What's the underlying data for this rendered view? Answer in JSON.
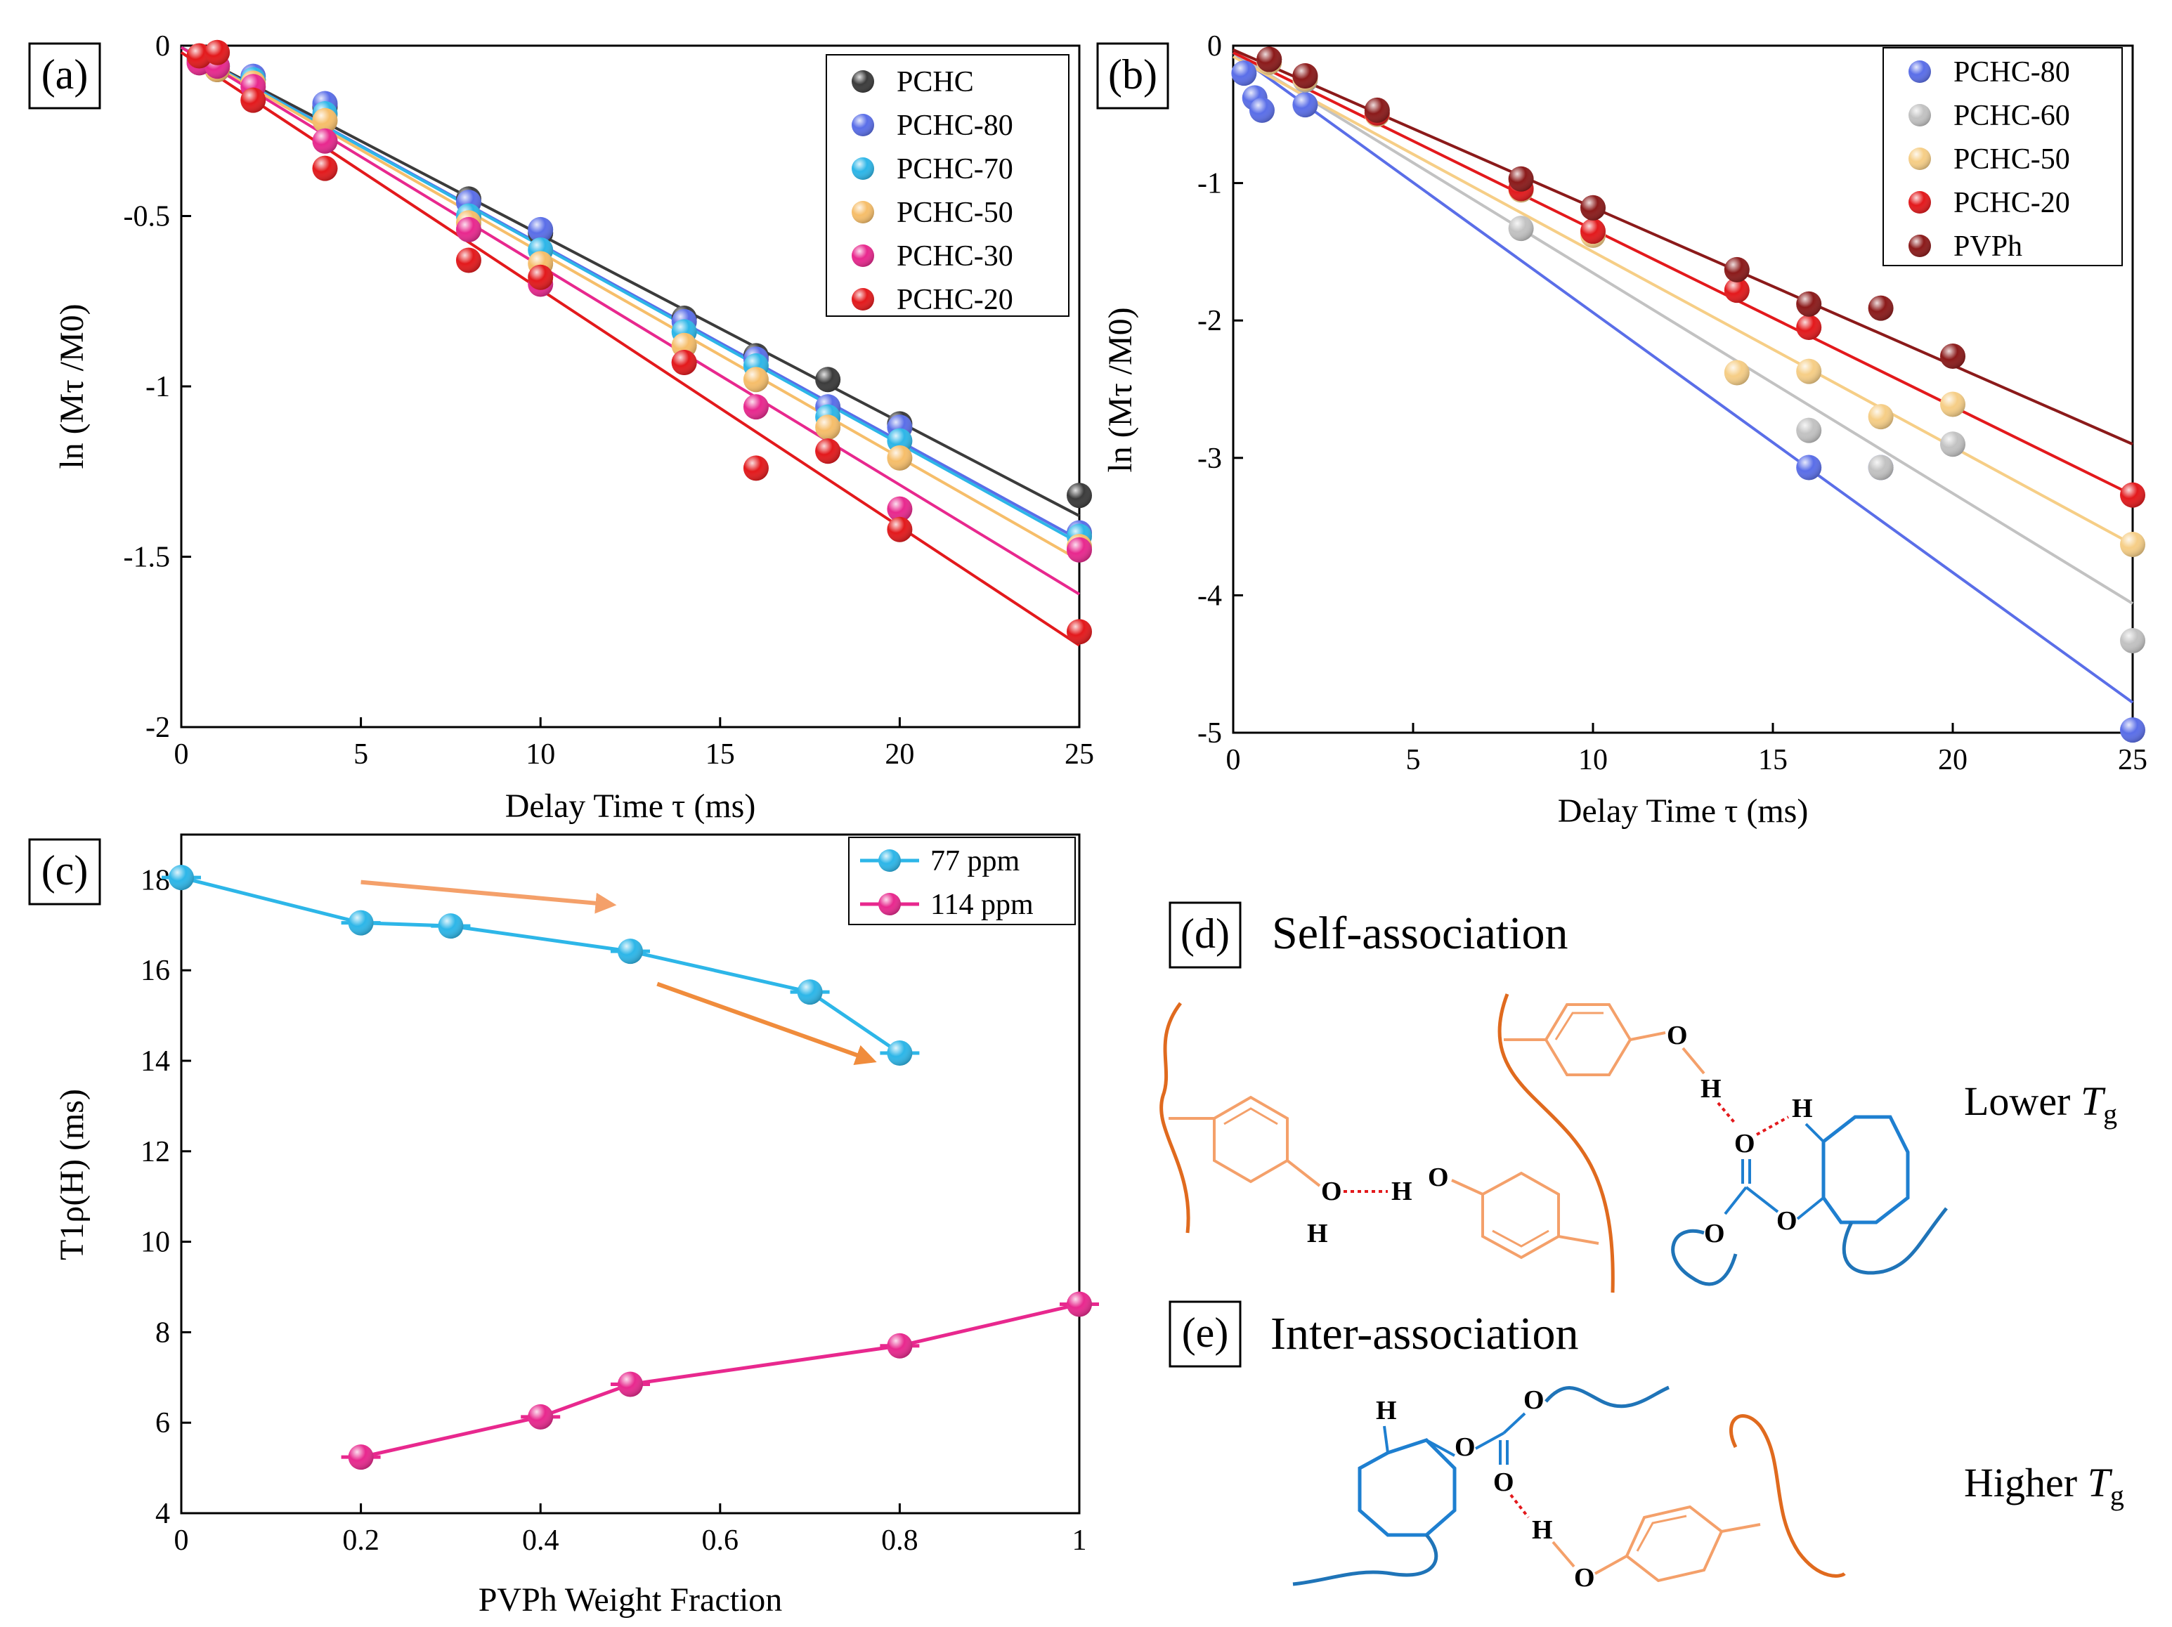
{
  "panels": {
    "a": "(a)",
    "b": "(b)",
    "c": "(c)",
    "d": "(d)",
    "e": "(e)"
  },
  "chart_data": [
    {
      "id": "a",
      "type": "scatter",
      "title": "",
      "xlabel": "Delay Time τ (ms)",
      "ylabel": "ln (Mτ /M0)",
      "xlim": [
        0,
        25
      ],
      "ylim": [
        -2,
        0
      ],
      "xticks": [
        0,
        5,
        10,
        15,
        20,
        25
      ],
      "yticks": [
        0,
        -0.5,
        -1,
        -1.5,
        -2
      ],
      "ytick_labels": [
        "0",
        "-0.5",
        "-1",
        "-1.5",
        "-2"
      ],
      "legend_position": "top-right",
      "series": [
        {
          "name": "PCHC",
          "color": "#3b3b3b",
          "x": [
            0.5,
            1,
            2,
            4,
            8,
            10,
            14,
            16,
            18,
            20,
            25
          ],
          "y": [
            -0.04,
            -0.07,
            -0.1,
            -0.18,
            -0.45,
            -0.55,
            -0.8,
            -0.91,
            -0.98,
            -1.11,
            -1.32
          ],
          "fit": [
            0,
            -0.005,
            25,
            -1.38
          ]
        },
        {
          "name": "PCHC-80",
          "color": "#5a6ee8",
          "x": [
            0.5,
            1,
            2,
            4,
            8,
            10,
            14,
            16,
            18,
            20,
            25
          ],
          "y": [
            -0.05,
            -0.06,
            -0.09,
            -0.17,
            -0.46,
            -0.54,
            -0.81,
            -0.92,
            -1.06,
            -1.12,
            -1.43
          ],
          "fit": [
            0,
            -0.005,
            25,
            -1.45
          ]
        },
        {
          "name": "PCHC-70",
          "color": "#2db6e8",
          "x": [
            0.5,
            1,
            2,
            4,
            8,
            10,
            14,
            16,
            18,
            20,
            25
          ],
          "y": [
            -0.04,
            -0.06,
            -0.1,
            -0.2,
            -0.5,
            -0.6,
            -0.84,
            -0.94,
            -1.09,
            -1.16,
            -1.44
          ],
          "fit": [
            0,
            -0.005,
            25,
            -1.46
          ]
        },
        {
          "name": "PCHC-50",
          "color": "#f6be6a",
          "x": [
            0.5,
            1,
            2,
            4,
            8,
            10,
            14,
            16,
            18,
            20,
            25
          ],
          "y": [
            -0.05,
            -0.07,
            -0.11,
            -0.22,
            -0.52,
            -0.64,
            -0.88,
            -0.98,
            -1.12,
            -1.21,
            -1.47
          ],
          "fit": [
            0,
            -0.005,
            25,
            -1.51
          ]
        },
        {
          "name": "PCHC-30",
          "color": "#e8288e",
          "x": [
            0.5,
            1,
            2,
            4,
            8,
            10,
            14,
            16,
            18,
            20,
            25
          ],
          "y": [
            -0.05,
            -0.06,
            -0.12,
            -0.28,
            -0.54,
            -0.7,
            -0.93,
            -1.06,
            -1.19,
            -1.36,
            -1.48
          ],
          "fit": [
            0,
            -0.005,
            25,
            -1.61
          ]
        },
        {
          "name": "PCHC-20",
          "color": "#e3191c",
          "x": [
            0.5,
            1,
            2,
            4,
            8,
            10,
            14,
            16,
            18,
            20,
            25
          ],
          "y": [
            -0.03,
            -0.02,
            -0.16,
            -0.36,
            -0.63,
            -0.68,
            -0.93,
            -1.24,
            -1.19,
            -1.42,
            -1.72
          ],
          "fit": [
            0,
            -0.02,
            25,
            -1.76
          ]
        }
      ]
    },
    {
      "id": "b",
      "type": "scatter",
      "title": "",
      "xlabel": "Delay Time τ (ms)",
      "ylabel": "ln (Mτ /M0)",
      "xlim": [
        0,
        25
      ],
      "ylim": [
        -5,
        0
      ],
      "xticks": [
        0,
        5,
        10,
        15,
        20,
        25
      ],
      "yticks": [
        0,
        -1,
        -2,
        -3,
        -4,
        -5
      ],
      "ytick_labels": [
        "0",
        "-1",
        "-2",
        "-3",
        "-4",
        "-5"
      ],
      "legend_position": "top-right",
      "series": [
        {
          "name": "PCHC-80",
          "color": "#5a6ee8",
          "x": [
            0.3,
            0.6,
            0.8,
            2,
            16,
            18,
            25
          ],
          "y": [
            -0.2,
            -0.38,
            -0.47,
            -0.43,
            -3.07,
            -3.07,
            -4.98
          ],
          "fit": [
            0,
            -0.05,
            25,
            -4.78
          ]
        },
        {
          "name": "PCHC-60",
          "color": "#c2c2c2",
          "x": [
            1,
            2,
            8,
            10,
            16,
            18,
            20,
            25
          ],
          "y": [
            -0.12,
            -0.25,
            -1.33,
            -1.37,
            -2.8,
            -3.07,
            -2.9,
            -4.33
          ],
          "fit": [
            0,
            -0.05,
            25,
            -4.06
          ]
        },
        {
          "name": "PCHC-50",
          "color": "#f6ce86",
          "x": [
            1,
            2,
            4,
            8,
            10,
            14,
            16,
            18,
            20,
            25
          ],
          "y": [
            -0.12,
            -0.24,
            -0.5,
            -1.05,
            -1.38,
            -2.38,
            -2.37,
            -2.7,
            -2.61,
            -3.63
          ],
          "fit": [
            0,
            -0.08,
            25,
            -3.63
          ]
        },
        {
          "name": "PCHC-20",
          "color": "#e3191c",
          "x": [
            1,
            2,
            4,
            8,
            10,
            14,
            16,
            25
          ],
          "y": [
            -0.1,
            -0.22,
            -0.49,
            -1.04,
            -1.35,
            -1.78,
            -2.05,
            -3.27
          ],
          "fit": [
            0,
            -0.05,
            25,
            -3.27
          ]
        },
        {
          "name": "PVPh",
          "color": "#8b1a1a",
          "x": [
            1,
            2,
            4,
            8,
            10,
            14,
            16,
            18,
            20
          ],
          "y": [
            -0.1,
            -0.22,
            -0.47,
            -0.97,
            -1.18,
            -1.63,
            -1.88,
            -1.91,
            -2.26
          ],
          "fit": [
            0,
            -0.03,
            25,
            -2.9
          ]
        }
      ]
    },
    {
      "id": "c",
      "type": "line",
      "title": "",
      "xlabel": "PVPh Weight Fraction",
      "ylabel": "T1ρ(H) (ms)",
      "xlim": [
        0,
        1
      ],
      "ylim": [
        4,
        19
      ],
      "xticks": [
        0,
        0.2,
        0.4,
        0.6,
        0.8,
        1
      ],
      "xtick_labels": [
        "0",
        "0.2",
        "0.4",
        "0.6",
        "0.8",
        "1"
      ],
      "yticks": [
        4,
        6,
        8,
        10,
        12,
        14,
        16,
        18
      ],
      "legend_position": "top-right",
      "series": [
        {
          "name": "77 ppm",
          "color": "#2db6e8",
          "x": [
            0,
            0.2,
            0.3,
            0.5,
            0.7,
            0.8
          ],
          "y": [
            18.05,
            17.05,
            16.98,
            16.42,
            15.52,
            14.17
          ]
        },
        {
          "name": "114 ppm",
          "color": "#e8288e",
          "x": [
            0.2,
            0.4,
            0.5,
            0.8,
            1.0
          ],
          "y": [
            5.24,
            6.13,
            6.85,
            7.7,
            8.62
          ]
        }
      ],
      "annotations": [
        {
          "type": "arrow",
          "color": "#f4a06a",
          "from": [
            0.2,
            17.95
          ],
          "to": [
            0.48,
            17.45
          ]
        },
        {
          "type": "arrow",
          "color": "#f08c3c",
          "from": [
            0.53,
            15.7
          ],
          "to": [
            0.77,
            14.0
          ]
        }
      ]
    }
  ],
  "scheme": {
    "d_title": "Self-association",
    "e_title": "Inter-association",
    "lower": "Lower ",
    "higher": "Higher ",
    "tg": "T",
    "tg_sub": "g",
    "colors": {
      "pvph": "#f4a06a",
      "pvph_chain": "#e06a1e",
      "pchc": "#1e7fd0",
      "pchc_chain": "#1f74b8",
      "hbond": "#e3191c",
      "lower": "#e040e0",
      "higher": "#e3191c"
    },
    "atoms": {
      "o": "O",
      "h": "H"
    }
  }
}
